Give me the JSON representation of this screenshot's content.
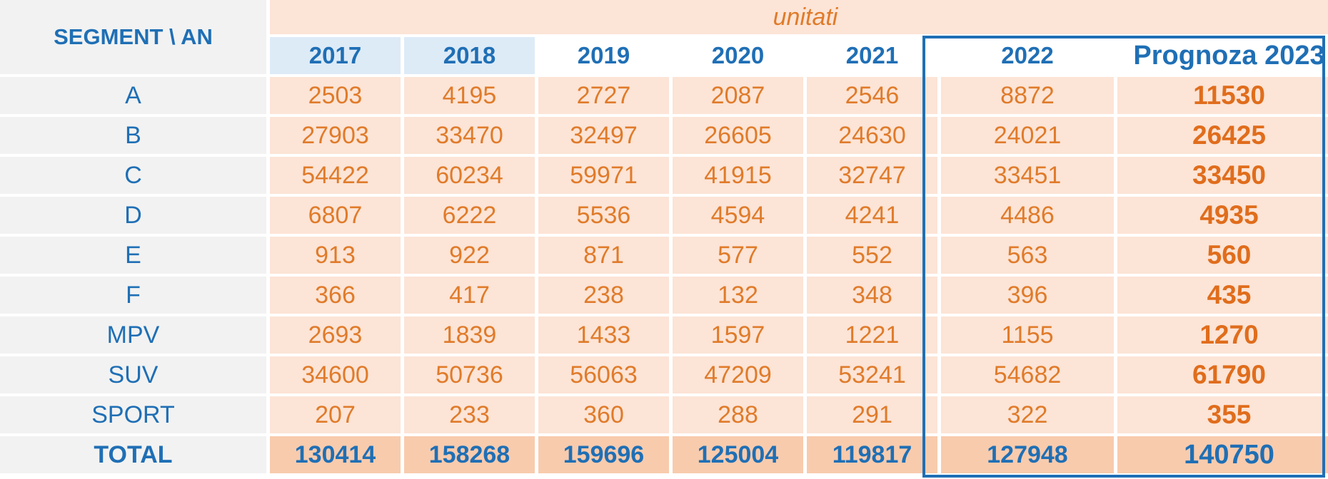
{
  "table": {
    "corner_label": "SEGMENT  \\ AN",
    "units_label": "unitati",
    "years": [
      "2017",
      "2018",
      "2019",
      "2020",
      "2021",
      "2022",
      "Prognoza 2023"
    ],
    "rows": [
      {
        "segment": "A",
        "values": [
          "2503",
          "4195",
          "2727",
          "2087",
          "2546",
          "8872",
          "11530"
        ]
      },
      {
        "segment": "B",
        "values": [
          "27903",
          "33470",
          "32497",
          "26605",
          "24630",
          "24021",
          "26425"
        ]
      },
      {
        "segment": "C",
        "values": [
          "54422",
          "60234",
          "59971",
          "41915",
          "32747",
          "33451",
          "33450"
        ]
      },
      {
        "segment": "D",
        "values": [
          "6807",
          "6222",
          "5536",
          "4594",
          "4241",
          "4486",
          "4935"
        ]
      },
      {
        "segment": "E",
        "values": [
          "913",
          "922",
          "871",
          "577",
          "552",
          "563",
          "560"
        ]
      },
      {
        "segment": "F",
        "values": [
          "366",
          "417",
          "238",
          "132",
          "348",
          "396",
          "435"
        ]
      },
      {
        "segment": "MPV",
        "values": [
          "2693",
          "1839",
          "1433",
          "1597",
          "1221",
          "1155",
          "1270"
        ]
      },
      {
        "segment": "SUV",
        "values": [
          "34600",
          "50736",
          "56063",
          "47209",
          "53241",
          "54682",
          "61790"
        ]
      },
      {
        "segment": "SPORT",
        "values": [
          "207",
          "233",
          "360",
          "288",
          "291",
          "322",
          "355"
        ]
      }
    ],
    "total": {
      "label": "TOTAL",
      "values": [
        "130414",
        "158268",
        "159696",
        "125004",
        "119817",
        "127948",
        "140750"
      ]
    }
  },
  "colors": {
    "header_blue": "#1f6fb5",
    "value_orange": "#e07b2a",
    "cell_peach": "#fce4d6",
    "total_peach": "#f8cbad",
    "year_header_light_blue": "#ddebf7",
    "segment_gray": "#f2f2f2"
  }
}
